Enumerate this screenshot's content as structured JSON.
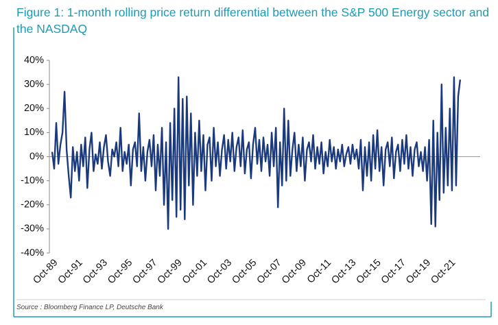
{
  "chart_data": {
    "type": "line",
    "title": "Figure 1: 1-month rolling price return differential between the S&P 500 Energy sector and the NASDAQ",
    "source": "Source : Bloomberg Finance LP, Deutsche Bank",
    "categories": [
      "Oct-89",
      null,
      null,
      null,
      null,
      null,
      null,
      null,
      null,
      null,
      null,
      null,
      "Oct-91",
      null,
      null,
      null,
      null,
      null,
      null,
      null,
      null,
      null,
      null,
      null,
      "Oct-93",
      null,
      null,
      null,
      null,
      null,
      null,
      null,
      null,
      null,
      null,
      null,
      "Oct-95",
      null,
      null,
      null,
      null,
      null,
      null,
      null,
      null,
      null,
      null,
      null,
      "Oct-97",
      null,
      null,
      null,
      null,
      null,
      null,
      null,
      null,
      null,
      null,
      null,
      "Oct-99",
      null,
      null,
      null,
      null,
      null,
      null,
      null,
      null,
      null,
      null,
      null,
      "Oct-01",
      null,
      null,
      null,
      null,
      null,
      null,
      null,
      null,
      null,
      null,
      null,
      "Oct-03",
      null,
      null,
      null,
      null,
      null,
      null,
      null,
      null,
      null,
      null,
      null,
      "Oct-05",
      null,
      null,
      null,
      null,
      null,
      null,
      null,
      null,
      null,
      null,
      null,
      "Oct-07",
      null,
      null,
      null,
      null,
      null,
      null,
      null,
      null,
      null,
      null,
      null,
      "Oct-09",
      null,
      null,
      null,
      null,
      null,
      null,
      null,
      null,
      null,
      null,
      null,
      "Oct-11",
      null,
      null,
      null,
      null,
      null,
      null,
      null,
      null,
      null,
      null,
      null,
      "Oct-13",
      null,
      null,
      null,
      null,
      null,
      null,
      null,
      null,
      null,
      null,
      null,
      "Oct-15",
      null,
      null,
      null,
      null,
      null,
      null,
      null,
      null,
      null,
      null,
      null,
      "Oct-17",
      null,
      null,
      null,
      null,
      null,
      null,
      null,
      null,
      null,
      null,
      null,
      "Oct-19",
      null,
      null,
      null,
      null,
      null,
      null,
      null,
      null,
      null,
      null,
      null,
      "Oct-21",
      null,
      null,
      null,
      null,
      null
    ],
    "values": [
      2,
      -5,
      14,
      -3,
      5,
      10,
      27,
      3,
      -8,
      -17,
      4,
      -6,
      2,
      -10,
      5,
      -4,
      8,
      -13,
      3,
      10,
      -6,
      1,
      -3,
      6,
      -5,
      4,
      9,
      -2,
      -8,
      3,
      0,
      6,
      -4,
      12,
      -6,
      2,
      -3,
      5,
      -12,
      3,
      6,
      -4,
      18,
      -6,
      4,
      -10,
      2,
      7,
      -4,
      9,
      -14,
      5,
      -8,
      12,
      -20,
      6,
      -30,
      14,
      -18,
      20,
      -25,
      33,
      -22,
      24,
      -26,
      25,
      -12,
      18,
      -20,
      10,
      -8,
      15,
      -6,
      9,
      -14,
      5,
      8,
      -10,
      12,
      -4,
      6,
      -8,
      3,
      9,
      -5,
      7,
      -2,
      10,
      -6,
      4,
      8,
      -4,
      11,
      -7,
      3,
      6,
      -9,
      5,
      12,
      -3,
      7,
      -6,
      8,
      -2,
      5,
      -8,
      10,
      -4,
      12,
      -21,
      6,
      -12,
      20,
      -10,
      15,
      -8,
      3,
      10,
      -6,
      5,
      -4,
      8,
      -10,
      3,
      6,
      -2,
      9,
      -5,
      4,
      -3,
      6,
      -7,
      2,
      -4,
      7,
      -2,
      4,
      -5,
      3,
      -2,
      5,
      -4,
      1,
      4,
      -3,
      5,
      -1,
      3,
      -5,
      7,
      -14,
      4,
      -8,
      6,
      -10,
      9,
      -5,
      11,
      -6,
      4,
      -12,
      3,
      6,
      -4,
      8,
      -9,
      2,
      5,
      -6,
      7,
      -3,
      9,
      -5,
      4,
      -8,
      3,
      6,
      -4,
      2,
      -6,
      4,
      -10,
      7,
      -28,
      15,
      -29,
      10,
      -18,
      30,
      -15,
      12,
      -12,
      20,
      -14,
      33,
      -12,
      25,
      32
    ],
    "color": "#1b3a7e",
    "ylim": [
      -40,
      40
    ],
    "yticks": [
      {
        "value": -40,
        "label": "-40%"
      },
      {
        "value": -30,
        "label": "-30%"
      },
      {
        "value": -20,
        "label": "-20%"
      },
      {
        "value": -10,
        "label": "-10%"
      },
      {
        "value": 0,
        "label": "0%"
      },
      {
        "value": 10,
        "label": "10%"
      },
      {
        "value": 20,
        "label": "20%"
      },
      {
        "value": 30,
        "label": "30%"
      },
      {
        "value": 40,
        "label": "40%"
      }
    ]
  }
}
